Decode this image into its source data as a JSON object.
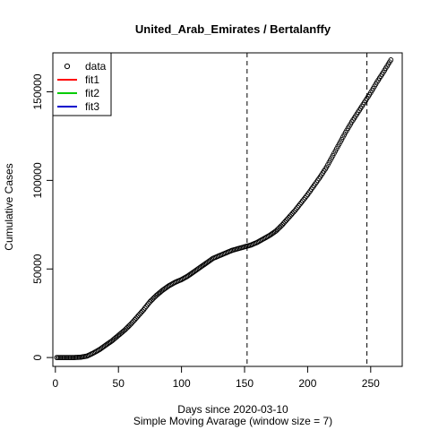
{
  "chart_data": {
    "type": "scatter",
    "title": "United_Arab_Emirates / Bertalanffy",
    "xlabel": "Days since 2020-03-10",
    "xlabel2": "Simple Moving Avarage (window size = 7)",
    "ylabel": "Cumulative Cases",
    "xlim": [
      -2,
      275
    ],
    "ylim": [
      -5000,
      172000
    ],
    "xticks": [
      0,
      50,
      100,
      150,
      200,
      250
    ],
    "yticks": [
      0,
      50000,
      100000,
      150000
    ],
    "vlines": [
      152,
      247
    ],
    "legend": {
      "position": "top-left",
      "entries": [
        {
          "label": "data",
          "kind": "point",
          "color": "#000000"
        },
        {
          "label": "fit1",
          "kind": "line",
          "color": "#ff0000"
        },
        {
          "label": "fit2",
          "kind": "line",
          "color": "#00cc00"
        },
        {
          "label": "fit3",
          "kind": "line",
          "color": "#0000cc"
        }
      ]
    },
    "series": [
      {
        "name": "data",
        "x": [
          1,
          5,
          10,
          15,
          20,
          25,
          30,
          35,
          40,
          45,
          50,
          55,
          60,
          65,
          70,
          75,
          80,
          85,
          90,
          95,
          100,
          105,
          110,
          115,
          120,
          125,
          130,
          135,
          140,
          145,
          150,
          155,
          160,
          165,
          170,
          175,
          180,
          185,
          190,
          195,
          200,
          205,
          210,
          215,
          220,
          225,
          230,
          235,
          240,
          245,
          250,
          255,
          260,
          266
        ],
        "y": [
          0,
          0,
          0,
          0,
          200,
          800,
          2500,
          4500,
          7000,
          9500,
          12500,
          15500,
          19000,
          23000,
          27000,
          31500,
          35000,
          38000,
          40500,
          42500,
          44000,
          46000,
          48500,
          51000,
          53500,
          56000,
          57500,
          59000,
          60500,
          61500,
          62500,
          63500,
          65000,
          67000,
          69000,
          71500,
          75000,
          79000,
          83000,
          87500,
          92000,
          97000,
          102000,
          107500,
          114000,
          120500,
          127000,
          133000,
          138500,
          144000,
          149500,
          155500,
          161000,
          168000
        ]
      }
    ]
  }
}
